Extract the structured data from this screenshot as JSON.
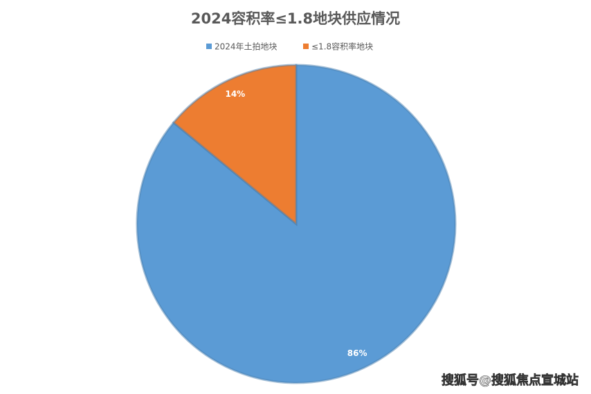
{
  "chart_data": {
    "type": "pie",
    "title": "2024容积率≤1.8地块供应情况",
    "categories": [
      "2024年土拍地块",
      "≤1.8容积率地块"
    ],
    "values": [
      86,
      14
    ],
    "value_labels": [
      "86%",
      "14%"
    ],
    "colors": [
      "#5b9bd5",
      "#ed7d31"
    ],
    "legend": "top"
  },
  "watermark": "搜狐号@搜狐焦点宣城站"
}
